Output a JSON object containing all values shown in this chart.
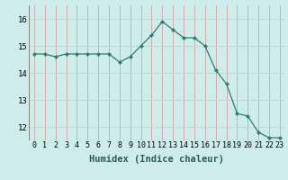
{
  "x": [
    0,
    1,
    2,
    3,
    4,
    5,
    6,
    7,
    8,
    9,
    10,
    11,
    12,
    13,
    14,
    15,
    16,
    17,
    18,
    19,
    20,
    21,
    22,
    23
  ],
  "y": [
    14.7,
    14.7,
    14.6,
    14.7,
    14.7,
    14.7,
    14.7,
    14.7,
    14.4,
    14.6,
    15.0,
    15.4,
    15.9,
    15.6,
    15.3,
    15.3,
    15.0,
    14.1,
    13.6,
    12.5,
    12.4,
    11.8,
    11.6,
    11.6
  ],
  "line_color": "#2e7d6e",
  "marker": "D",
  "marker_size": 2.0,
  "bg_color": "#ceecea",
  "grid_color_v": "#d4a0a0",
  "grid_color_h": "#b8d8d4",
  "xlabel": "Humidex (Indice chaleur)",
  "xlabel_fontsize": 7.5,
  "ylim": [
    11.5,
    16.5
  ],
  "xlim": [
    -0.5,
    23.5
  ],
  "yticks": [
    12,
    13,
    14,
    15,
    16
  ],
  "xticks": [
    0,
    1,
    2,
    3,
    4,
    5,
    6,
    7,
    8,
    9,
    10,
    11,
    12,
    13,
    14,
    15,
    16,
    17,
    18,
    19,
    20,
    21,
    22,
    23
  ],
  "tick_fontsize": 6.0,
  "ytick_fontsize": 6.5
}
